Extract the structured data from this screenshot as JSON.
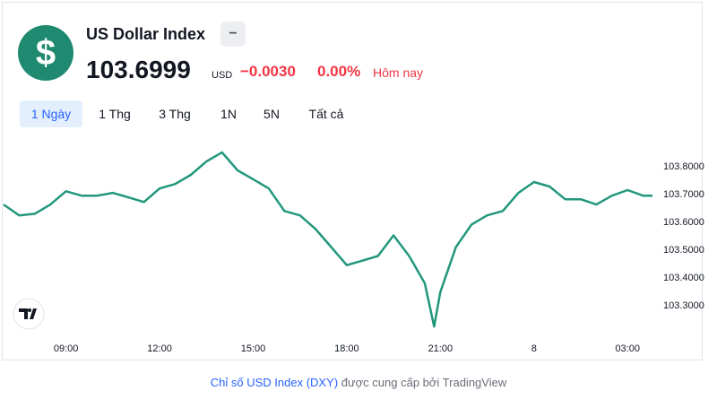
{
  "header": {
    "icon": "$",
    "name": "US Dollar Index",
    "badge": "−",
    "price": "103.6999",
    "currency": "USD",
    "change": "−0.0030",
    "change_pct": "0.00%",
    "period": "Hôm nay"
  },
  "ranges": [
    "1 Ngày",
    "1 Thg",
    "3 Thg",
    "1N",
    "5N",
    "Tất cả"
  ],
  "chart_data": {
    "type": "line",
    "color": "#22977c",
    "x": [
      7.0,
      7.5,
      8.0,
      8.5,
      9.0,
      9.5,
      10.0,
      10.5,
      11.0,
      11.5,
      12.0,
      12.5,
      13.0,
      13.5,
      14.0,
      14.5,
      15.0,
      15.5,
      16.0,
      16.5,
      17.0,
      17.5,
      18.0,
      18.5,
      19.0,
      19.5,
      20.0,
      20.5,
      20.8,
      21.0,
      21.5,
      22.0,
      22.5,
      23.0,
      23.5,
      24.0,
      24.5,
      25.0,
      25.5,
      26.0,
      26.5,
      27.0,
      27.5,
      27.8
    ],
    "values": [
      103.664,
      103.625,
      103.631,
      103.664,
      103.712,
      103.696,
      103.696,
      103.706,
      103.69,
      103.673,
      103.722,
      103.738,
      103.771,
      103.819,
      103.852,
      103.787,
      103.755,
      103.722,
      103.641,
      103.625,
      103.576,
      103.511,
      103.446,
      103.462,
      103.479,
      103.553,
      103.479,
      103.381,
      103.225,
      103.349,
      103.511,
      103.592,
      103.625,
      103.641,
      103.706,
      103.745,
      103.729,
      103.683,
      103.683,
      103.664,
      103.696,
      103.716,
      103.696,
      103.696
    ],
    "xlim": [
      7.0,
      28.0
    ],
    "xticks": [
      {
        "value": 9,
        "label": "09:00"
      },
      {
        "value": 12,
        "label": "12:00"
      },
      {
        "value": 15,
        "label": "15:00"
      },
      {
        "value": 18,
        "label": "18:00"
      },
      {
        "value": 21,
        "label": "21:00"
      },
      {
        "value": 24,
        "label": "8"
      },
      {
        "value": 27,
        "label": "03:00"
      }
    ],
    "ylim": [
      103.19,
      103.9
    ],
    "yticks": [
      {
        "value": 103.3,
        "label": "103.3000"
      },
      {
        "value": 103.4,
        "label": "103.4000"
      },
      {
        "value": 103.5,
        "label": "103.5000"
      },
      {
        "value": 103.6,
        "label": "103.6000"
      },
      {
        "value": 103.7,
        "label": "103.7000"
      },
      {
        "value": 103.8,
        "label": "103.8000"
      }
    ]
  },
  "footer": {
    "link": "Chỉ số USD Index (DXY)",
    "text": "được cung cấp bởi TradingView"
  }
}
